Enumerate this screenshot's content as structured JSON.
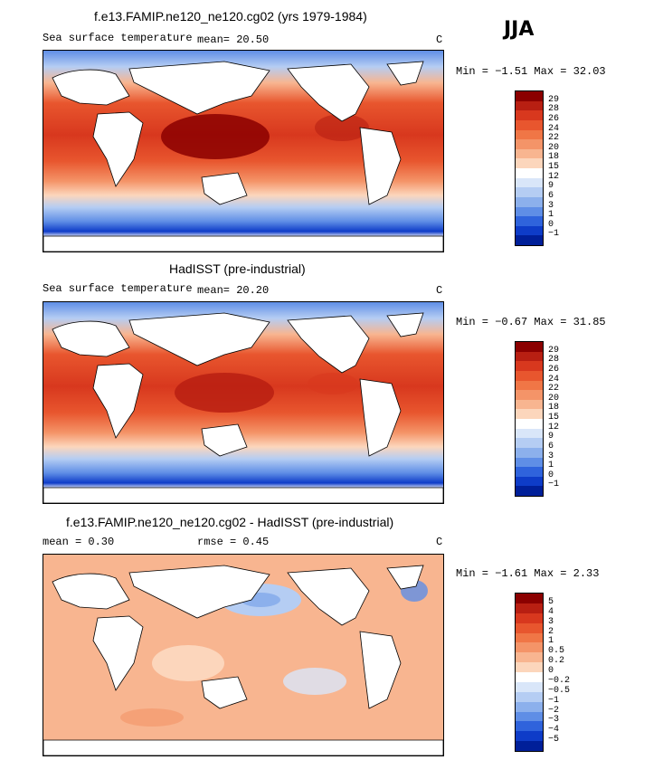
{
  "season": "JJA",
  "panels": [
    {
      "title": "f.e13.FAMIP.ne120_ne120.cg02 (yrs 1979-1984)",
      "variable": "Sea surface temperature",
      "stat_left": "mean=   20.50",
      "stat_mid": "",
      "units": "C",
      "minmax": "Min =  −1.51  Max =  32.03",
      "levels": [
        "29",
        "28",
        "26",
        "24",
        "22",
        "20",
        "18",
        "15",
        "12",
        "9",
        "6",
        "3",
        "1",
        "0",
        "−1"
      ],
      "colors": [
        "#8b0000",
        "#b81f12",
        "#d8381e",
        "#e8562e",
        "#f07646",
        "#f49468",
        "#f8b590",
        "#fcd6bc",
        "#ffffff",
        "#d9e6f9",
        "#b5cdf3",
        "#8cb0ec",
        "#5f8ee6",
        "#2f63dc",
        "#0e3cc8",
        "#001f99"
      ]
    },
    {
      "title": "HadISST (pre-industrial)",
      "variable": "Sea surface temperature",
      "stat_left": "mean=   20.20",
      "stat_mid": "",
      "units": "C",
      "minmax": "Min =  −0.67  Max =  31.85",
      "levels": [
        "29",
        "28",
        "26",
        "24",
        "22",
        "20",
        "18",
        "15",
        "12",
        "9",
        "6",
        "3",
        "1",
        "0",
        "−1"
      ],
      "colors": [
        "#8b0000",
        "#b81f12",
        "#d8381e",
        "#e8562e",
        "#f07646",
        "#f49468",
        "#f8b590",
        "#fcd6bc",
        "#ffffff",
        "#d9e6f9",
        "#b5cdf3",
        "#8cb0ec",
        "#5f8ee6",
        "#2f63dc",
        "#0e3cc8",
        "#001f99"
      ]
    },
    {
      "title": "f.e13.FAMIP.ne120_ne120.cg02 - HadISST (pre-industrial)",
      "variable": "",
      "stat_left": "mean =    0.30",
      "stat_mid": "rmse =    0.45",
      "units": "C",
      "minmax": "Min =  −1.61  Max =   2.33",
      "levels": [
        "5",
        "4",
        "3",
        "2",
        "1",
        "0.5",
        "0.2",
        "0",
        "−0.2",
        "−0.5",
        "−1",
        "−2",
        "−3",
        "−4",
        "−5"
      ],
      "colors": [
        "#8b0000",
        "#b81f12",
        "#d8381e",
        "#e8562e",
        "#f07646",
        "#f49468",
        "#f8b590",
        "#fcd6bc",
        "#ffffff",
        "#d9e6f9",
        "#b5cdf3",
        "#8cb0ec",
        "#5f8ee6",
        "#2f63dc",
        "#0e3cc8",
        "#001f99"
      ]
    }
  ]
}
